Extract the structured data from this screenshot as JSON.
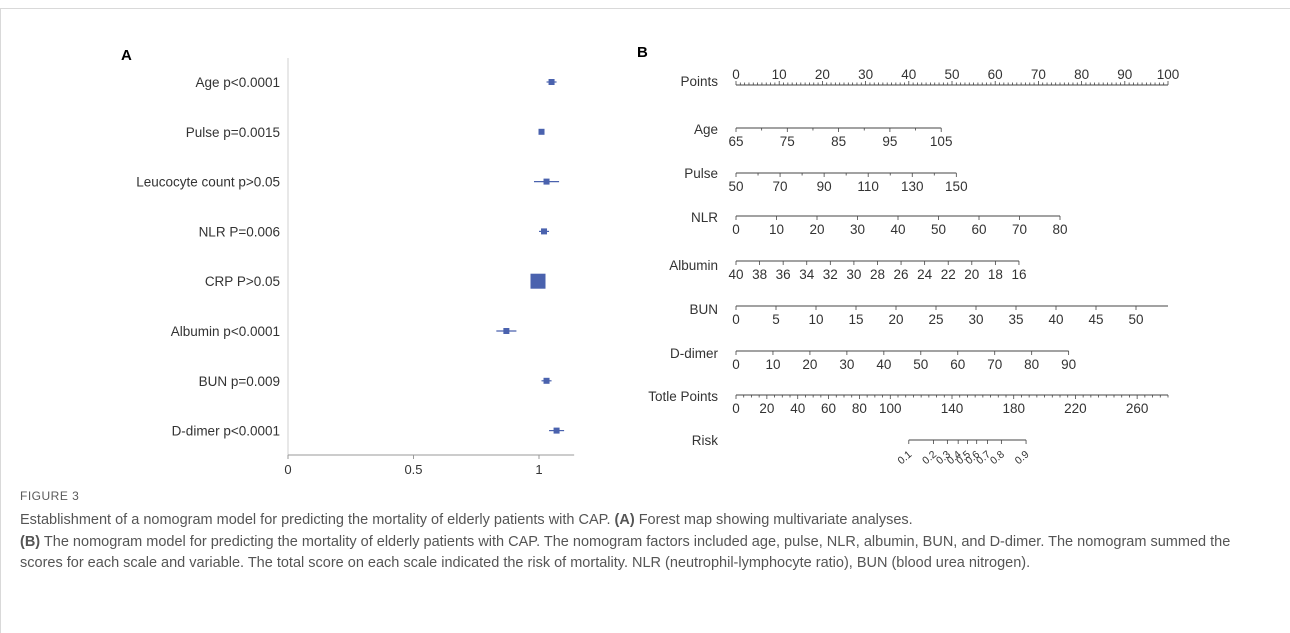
{
  "figure": {
    "label": "FIGURE 3",
    "caption": {
      "title": "Establishment of a nomogram model for predicting the mortality of elderly patients with CAP.",
      "a_key": "(A)",
      "a_text": "Forest map showing multivariate analyses.",
      "b_key": "(B)",
      "b_text": "The nomogram model for predicting the mortality of elderly patients with CAP. The nomogram factors included age, pulse, NLR, albumin, BUN, and D-dimer. The nomogram summed the scores for each scale and variable. The total score on each scale indicated the risk of mortality. NLR (neutrophil-lymphocyte ratio), BUN (blood urea nitrogen)."
    }
  },
  "chart_data": [
    {
      "type": "forest",
      "panel_label": "A",
      "title": "",
      "xlabel": "",
      "ylabel": "",
      "xlim": [
        0,
        1.14
      ],
      "x_ticks": [
        "0",
        "0.5",
        "1"
      ],
      "reference_line": 1,
      "marker_color": "#4a62ae",
      "rows": [
        {
          "label": "Age p<0.0001",
          "estimate": 1.05,
          "lower": 1.03,
          "upper": 1.07,
          "weight": 0.25
        },
        {
          "label": "Pulse p=0.0015",
          "estimate": 1.01,
          "lower": 1.0,
          "upper": 1.02,
          "weight": 0.3
        },
        {
          "label": "Leucocyte count p>0.05",
          "estimate": 1.03,
          "lower": 0.98,
          "upper": 1.08,
          "weight": 0.25
        },
        {
          "label": "NLR P=0.006",
          "estimate": 1.02,
          "lower": 1.0,
          "upper": 1.04,
          "weight": 0.25
        },
        {
          "label": "CRP P>0.05",
          "estimate": 1.0,
          "lower": 1.0,
          "upper": 1.0,
          "weight": 1.0
        },
        {
          "label": "Albumin p<0.0001",
          "estimate": 0.87,
          "lower": 0.83,
          "upper": 0.91,
          "weight": 0.25
        },
        {
          "label": "BUN p=0.009",
          "estimate": 1.03,
          "lower": 1.01,
          "upper": 1.05,
          "weight": 0.25
        },
        {
          "label": "D-dimer p<0.0001",
          "estimate": 1.07,
          "lower": 1.04,
          "upper": 1.1,
          "weight": 0.25
        }
      ]
    },
    {
      "type": "nomogram",
      "panel_label": "B",
      "title": "",
      "axes": [
        {
          "name": "Points",
          "min": 0,
          "max": 100,
          "pmin": 0,
          "pmax": 100,
          "labels": [
            0,
            10,
            20,
            30,
            40,
            50,
            60,
            70,
            80,
            90,
            100
          ],
          "minor_step": 1,
          "label_pos": "above"
        },
        {
          "name": "Age",
          "min": 65,
          "max": 105,
          "pmin": 0,
          "pmax": 47.5,
          "labels": [
            65,
            75,
            85,
            95,
            105
          ],
          "minor_step": 5,
          "label_pos": "below"
        },
        {
          "name": "Pulse",
          "min": 50,
          "max": 150,
          "pmin": 0,
          "pmax": 51,
          "labels": [
            50,
            70,
            90,
            110,
            130,
            150
          ],
          "minor_step": 10,
          "label_pos": "below"
        },
        {
          "name": "NLR",
          "min": 0,
          "max": 80,
          "pmin": 0,
          "pmax": 75,
          "labels": [
            0,
            10,
            20,
            30,
            40,
            50,
            60,
            70,
            80
          ],
          "minor_step": 10,
          "label_pos": "below"
        },
        {
          "name": "Albumin",
          "min": 40,
          "max": 16,
          "pmin": 0,
          "pmax": 65.5,
          "labels": [
            40,
            38,
            36,
            34,
            32,
            30,
            28,
            26,
            24,
            22,
            20,
            18,
            16
          ],
          "minor_step": 2,
          "label_pos": "below"
        },
        {
          "name": "BUN",
          "min": 0,
          "max": 50,
          "pmin": 0,
          "pmax": 100,
          "line_extend_to": 100,
          "labels": [
            0,
            5,
            10,
            15,
            20,
            25,
            30,
            35,
            40,
            45,
            50
          ],
          "label_max": 50,
          "minor_step": 5,
          "label_pos": "below",
          "axis_span": 54
        },
        {
          "name": "D-dimer",
          "min": 0,
          "max": 90,
          "pmin": 0,
          "pmax": 77,
          "labels": [
            0,
            10,
            20,
            30,
            40,
            50,
            60,
            70,
            80,
            90
          ],
          "minor_step": 10,
          "label_pos": "below"
        },
        {
          "name": "Totle Points",
          "min": 0,
          "max": 280,
          "pmin": 0,
          "pmax": 100,
          "labels": [
            0,
            20,
            40,
            60,
            80,
            100,
            140,
            180,
            220,
            260
          ],
          "minor_step": 5,
          "label_pos": "below"
        }
      ],
      "risk": {
        "name": "Risk",
        "labels": [
          "0.1",
          "0.2",
          "0.3",
          "0.4",
          "0.5",
          "0.6",
          "0.7",
          "0.8",
          "0.9"
        ],
        "total_points": [
          112,
          128,
          137,
          144,
          150,
          156,
          163,
          172,
          188
        ]
      }
    }
  ]
}
